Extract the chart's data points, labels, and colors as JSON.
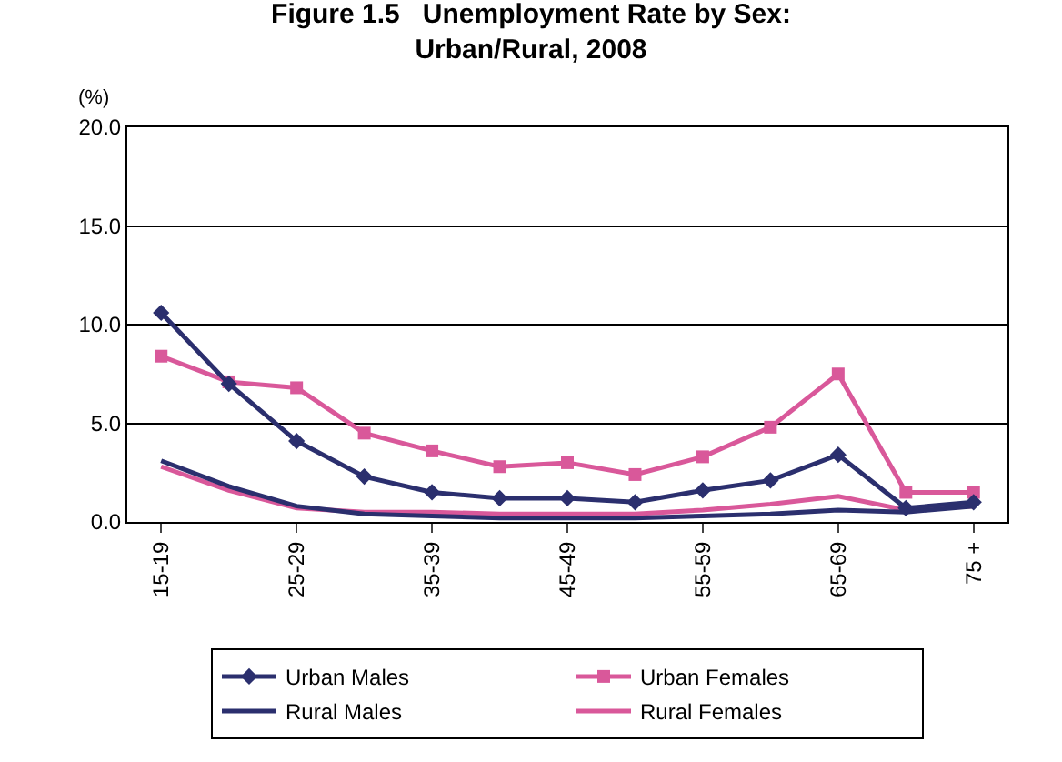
{
  "chart_data": {
    "type": "line",
    "title": "Figure 1.5   Unemployment Rate by Sex:\nUrban/Rural, 2008",
    "ylabel": "(%)",
    "categories": [
      "15-19",
      null,
      "25-29",
      null,
      "35-39",
      null,
      "45-49",
      null,
      "55-59",
      null,
      "65-69",
      null,
      "75 +"
    ],
    "series": [
      {
        "name": "Urban Males",
        "color": "#2b2f6e",
        "marker": "diamond",
        "values": [
          10.6,
          7.0,
          4.1,
          2.3,
          1.5,
          1.2,
          1.2,
          1.0,
          1.6,
          2.1,
          3.4,
          0.7,
          1.0
        ]
      },
      {
        "name": "Urban Females",
        "color": "#d9589a",
        "marker": "square",
        "values": [
          8.4,
          7.1,
          6.8,
          4.5,
          3.6,
          2.8,
          3.0,
          2.4,
          3.3,
          4.8,
          7.5,
          1.5,
          1.5
        ]
      },
      {
        "name": "Rural Males",
        "color": "#2b2f6e",
        "marker": "none",
        "values": [
          3.1,
          1.8,
          0.8,
          0.4,
          0.3,
          0.2,
          0.2,
          0.2,
          0.3,
          0.4,
          0.6,
          0.5,
          0.8
        ]
      },
      {
        "name": "Rural Females",
        "color": "#d9589a",
        "marker": "none",
        "values": [
          2.8,
          1.6,
          0.7,
          0.5,
          0.5,
          0.4,
          0.4,
          0.4,
          0.6,
          0.9,
          1.3,
          0.6,
          0.8
        ]
      }
    ],
    "ylim": [
      0,
      20
    ],
    "yticks": [
      {
        "value": 0,
        "label": "0.0"
      },
      {
        "value": 5,
        "label": "5.0"
      },
      {
        "value": 10,
        "label": "10.0"
      },
      {
        "value": 15,
        "label": "15.0"
      },
      {
        "value": 20,
        "label": "20.0"
      }
    ],
    "grid": "y",
    "legend": "bottom"
  }
}
